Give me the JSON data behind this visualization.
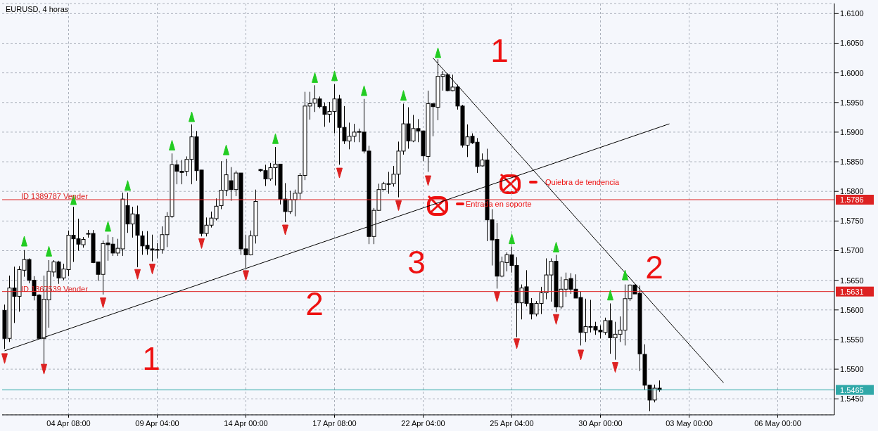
{
  "chart_data": {
    "type": "candlestick",
    "title": "EURUSD, 4 horas",
    "categories": [
      null,
      null,
      null,
      null,
      null,
      null,
      null,
      null,
      null,
      null,
      null,
      null,
      null,
      "04 Apr 08:00",
      null,
      null,
      null,
      null,
      null,
      null,
      null,
      null,
      null,
      null,
      null,
      null,
      null,
      null,
      null,
      null,
      null,
      "09 Apr 04:00",
      null,
      null,
      null,
      null,
      null,
      null,
      null,
      null,
      null,
      null,
      null,
      null,
      null,
      null,
      null,
      null,
      null,
      "14 Apr 00:00",
      null,
      null,
      null,
      null,
      null,
      null,
      null,
      null,
      null,
      null,
      null,
      null,
      null,
      null,
      null,
      null,
      null,
      "17 Apr 08:00",
      null,
      null,
      null,
      null,
      null,
      null,
      null,
      null,
      null,
      null,
      null,
      null,
      null,
      null,
      null,
      null,
      null,
      "22 Apr 04:00",
      null,
      null,
      null,
      null,
      null,
      null,
      null,
      null,
      null,
      null,
      null,
      null,
      null,
      null,
      null,
      null,
      null,
      "25 Apr 04:00",
      null,
      null,
      null,
      null,
      null,
      null,
      null,
      null,
      null,
      null,
      null,
      null,
      null,
      null,
      null,
      null,
      null,
      "30 Apr 00:00",
      null,
      null,
      null,
      null,
      null,
      null,
      null,
      null,
      null,
      null,
      null,
      null,
      null,
      null,
      null,
      null,
      null,
      "03 May 00:00",
      null,
      null,
      null,
      null,
      null,
      null,
      null,
      null,
      null,
      null,
      null,
      null,
      null,
      null,
      null,
      null,
      null,
      "06 May 00:00",
      null,
      null,
      null,
      null,
      null,
      null,
      null,
      null,
      null,
      null,
      null
    ],
    "ohlc": [
      [
        1.5599,
        1.5609,
        1.5534,
        1.5552
      ],
      [
        1.5552,
        1.5658,
        1.5546,
        1.5637
      ],
      [
        1.5637,
        1.5673,
        1.5578,
        1.5623
      ],
      [
        1.5623,
        1.5674,
        1.5597,
        1.5668
      ],
      [
        1.5667,
        1.5701,
        1.5656,
        1.5685
      ],
      [
        1.5685,
        1.5687,
        1.5645,
        1.565
      ],
      [
        1.565,
        1.5657,
        1.5616,
        1.5624
      ],
      [
        1.5625,
        1.5627,
        1.5551,
        1.5552
      ],
      [
        1.5552,
        1.5658,
        1.5508,
        1.5618
      ],
      [
        1.5617,
        1.5684,
        1.557,
        1.5665
      ],
      [
        1.5664,
        1.5684,
        1.5656,
        1.5681
      ],
      [
        1.5681,
        1.5683,
        1.5644,
        1.5654
      ],
      [
        1.5654,
        1.5678,
        1.565,
        1.5669
      ],
      [
        1.5668,
        1.5734,
        1.5657,
        1.5726
      ],
      [
        1.5726,
        1.5774,
        1.5681,
        1.572
      ],
      [
        1.572,
        1.5754,
        1.57,
        1.5711
      ],
      [
        1.571,
        1.5723,
        1.5705,
        1.5719
      ],
      [
        1.5729,
        1.5735,
        1.5722,
        1.5728
      ],
      [
        1.5729,
        1.5735,
        1.5679,
        1.568
      ],
      [
        1.5681,
        1.5681,
        1.5649,
        1.566
      ],
      [
        1.566,
        1.5717,
        1.5626,
        1.5712
      ],
      [
        1.5713,
        1.5727,
        1.5683,
        1.571
      ],
      [
        1.5711,
        1.5723,
        1.5691,
        1.5696
      ],
      [
        1.5696,
        1.572,
        1.5691,
        1.5704
      ],
      [
        1.5703,
        1.5798,
        1.5691,
        1.5787
      ],
      [
        1.5776,
        1.5798,
        1.573,
        1.5745
      ],
      [
        1.5745,
        1.5774,
        1.5722,
        1.5762
      ],
      [
        1.5761,
        1.5776,
        1.5672,
        1.5726
      ],
      [
        1.5725,
        1.5733,
        1.5693,
        1.5708
      ],
      [
        1.5709,
        1.5733,
        1.5693,
        1.5703
      ],
      [
        1.5703,
        1.5727,
        1.5682,
        1.5701
      ],
      [
        1.5702,
        1.5713,
        1.5687,
        1.5701
      ],
      [
        1.5702,
        1.5741,
        1.5695,
        1.5727
      ],
      [
        1.5727,
        1.5765,
        1.5706,
        1.5758
      ],
      [
        1.5758,
        1.5864,
        1.5755,
        1.5845
      ],
      [
        1.5845,
        1.5853,
        1.5812,
        1.5834
      ],
      [
        1.5834,
        1.5853,
        1.5812,
        1.5832
      ],
      [
        1.5834,
        1.5859,
        1.5826,
        1.5854
      ],
      [
        1.5854,
        1.5913,
        1.5812,
        1.5892
      ],
      [
        1.5892,
        1.5902,
        1.5818,
        1.5835
      ],
      [
        1.5836,
        1.5836,
        1.5724,
        1.5729
      ],
      [
        1.5729,
        1.5756,
        1.5724,
        1.5743
      ],
      [
        1.5743,
        1.5766,
        1.5739,
        1.5755
      ],
      [
        1.5754,
        1.5788,
        1.5751,
        1.5775
      ],
      [
        1.5776,
        1.5851,
        1.577,
        1.5802
      ],
      [
        1.5802,
        1.5855,
        1.5792,
        1.5828
      ],
      [
        1.5818,
        1.5841,
        1.5784,
        1.5803
      ],
      [
        1.5803,
        1.5835,
        1.5792,
        1.5831
      ],
      [
        1.5831,
        1.5831,
        1.5693,
        1.5703
      ],
      [
        1.5703,
        1.5727,
        1.5671,
        1.5693
      ],
      [
        1.5693,
        1.5734,
        1.5692,
        1.5725
      ],
      [
        1.5725,
        1.5803,
        1.5712,
        1.5783
      ],
      [
        1.5837,
        1.5838,
        1.5833,
        1.5835
      ],
      [
        1.5835,
        1.5845,
        1.5809,
        1.5821
      ],
      [
        1.5821,
        1.5848,
        1.5818,
        1.584
      ],
      [
        1.584,
        1.5875,
        1.581,
        1.5846
      ],
      [
        1.5846,
        1.5846,
        1.5778,
        1.5787
      ],
      [
        1.5787,
        1.5814,
        1.5748,
        1.5766
      ],
      [
        1.5766,
        1.5801,
        1.5762,
        1.5786
      ],
      [
        1.5786,
        1.5803,
        1.5758,
        1.5797
      ],
      [
        1.5797,
        1.5831,
        1.5786,
        1.5827
      ],
      [
        1.5827,
        1.5968,
        1.5819,
        1.5944
      ],
      [
        1.5944,
        1.5968,
        1.5921,
        1.5948
      ],
      [
        1.5949,
        1.5979,
        1.5934,
        1.5956
      ],
      [
        1.5956,
        1.596,
        1.594,
        1.5943
      ],
      [
        1.5943,
        1.595,
        1.5909,
        1.593
      ],
      [
        1.593,
        1.5951,
        1.5916,
        1.5935
      ],
      [
        1.5935,
        1.5981,
        1.5898,
        1.5956
      ],
      [
        1.5956,
        1.5963,
        1.5845,
        1.5908
      ],
      [
        1.5908,
        1.5944,
        1.588,
        1.5885
      ],
      [
        1.5885,
        1.5916,
        1.5871,
        1.5893
      ],
      [
        1.5893,
        1.5914,
        1.5883,
        1.59
      ],
      [
        1.5901,
        1.5906,
        1.5883,
        1.59
      ],
      [
        1.59,
        1.5956,
        1.5864,
        1.5868
      ],
      [
        1.5868,
        1.5877,
        1.5711,
        1.5724
      ],
      [
        1.5724,
        1.5772,
        1.5711,
        1.5768
      ],
      [
        1.5768,
        1.5813,
        1.5767,
        1.5803
      ],
      [
        1.5803,
        1.5816,
        1.5802,
        1.5813
      ],
      [
        1.5813,
        1.5833,
        1.5796,
        1.5812
      ],
      [
        1.5813,
        1.5843,
        1.5808,
        1.5829
      ],
      [
        1.5829,
        1.5884,
        1.579,
        1.5868
      ],
      [
        1.5868,
        1.5948,
        1.5862,
        1.5914
      ],
      [
        1.5914,
        1.5942,
        1.5872,
        1.5885
      ],
      [
        1.5885,
        1.5929,
        1.5883,
        1.5906
      ],
      [
        1.5906,
        1.5922,
        1.5883,
        1.5902
      ],
      [
        1.5902,
        1.5902,
        1.5851,
        1.586
      ],
      [
        1.5859,
        1.597,
        1.5833,
        1.5948
      ],
      [
        1.5948,
        1.5948,
        1.5893,
        1.5943
      ],
      [
        1.5942,
        1.6023,
        1.592,
        1.5994
      ],
      [
        1.5994,
        1.6003,
        1.597,
        1.5997
      ],
      [
        1.5997,
        1.5999,
        1.5969,
        1.597
      ],
      [
        1.597,
        1.5997,
        1.5969,
        1.5976
      ],
      [
        1.5976,
        1.598,
        1.5938,
        1.5944
      ],
      [
        1.5944,
        1.5946,
        1.5874,
        1.5878
      ],
      [
        1.5878,
        1.5913,
        1.5858,
        1.5892
      ],
      [
        1.5893,
        1.5898,
        1.588,
        1.5882
      ],
      [
        1.5883,
        1.589,
        1.5831,
        1.5842
      ],
      [
        1.5843,
        1.5864,
        1.5842,
        1.5853
      ],
      [
        1.5853,
        1.5872,
        1.5716,
        1.5752
      ],
      [
        1.5752,
        1.577,
        1.5675,
        1.5718
      ],
      [
        1.5719,
        1.5747,
        1.5636,
        1.5657
      ],
      [
        1.5657,
        1.569,
        1.5655,
        1.5681
      ],
      [
        1.568,
        1.5697,
        1.5665,
        1.5693
      ],
      [
        1.5693,
        1.5707,
        1.5663,
        1.5675
      ],
      [
        1.5675,
        1.5689,
        1.5554,
        1.5612
      ],
      [
        1.5612,
        1.5643,
        1.5584,
        1.5637
      ],
      [
        1.5639,
        1.5667,
        1.5606,
        1.5611
      ],
      [
        1.5611,
        1.562,
        1.5584,
        1.5593
      ],
      [
        1.5593,
        1.5615,
        1.5589,
        1.5611
      ],
      [
        1.5611,
        1.5639,
        1.5593,
        1.5629
      ],
      [
        1.5629,
        1.5687,
        1.5618,
        1.5659
      ],
      [
        1.5659,
        1.5687,
        1.5614,
        1.5682
      ],
      [
        1.5682,
        1.5693,
        1.5596,
        1.5605
      ],
      [
        1.5605,
        1.5656,
        1.5602,
        1.5635
      ],
      [
        1.5635,
        1.5663,
        1.5622,
        1.5651
      ],
      [
        1.5653,
        1.5662,
        1.5627,
        1.5635
      ],
      [
        1.5635,
        1.566,
        1.562,
        1.562
      ],
      [
        1.5621,
        1.5631,
        1.554,
        1.5562
      ],
      [
        1.5562,
        1.5619,
        1.5546,
        1.5572
      ],
      [
        1.5572,
        1.5617,
        1.5562,
        1.5571
      ],
      [
        1.5572,
        1.558,
        1.5558,
        1.5566
      ],
      [
        1.5566,
        1.5574,
        1.5552,
        1.5563
      ],
      [
        1.5562,
        1.5587,
        1.5558,
        1.5582
      ],
      [
        1.5582,
        1.5611,
        1.5526,
        1.5553
      ],
      [
        1.5553,
        1.558,
        1.5516,
        1.5559
      ],
      [
        1.5559,
        1.5589,
        1.5546,
        1.5566
      ],
      [
        1.5566,
        1.5643,
        1.554,
        1.5619
      ],
      [
        1.5619,
        1.5643,
        1.5615,
        1.5642
      ],
      [
        1.5642,
        1.5643,
        1.5627,
        1.5627
      ],
      [
        1.5628,
        1.5641,
        1.5497,
        1.5526
      ],
      [
        1.5525,
        1.5542,
        1.5465,
        1.5473
      ],
      [
        1.5473,
        1.5473,
        1.5429,
        1.5448
      ],
      [
        1.5448,
        1.5474,
        1.5444,
        1.5468
      ],
      [
        1.5468,
        1.5481,
        1.5462,
        1.5465
      ],
      null,
      null,
      null,
      null,
      null,
      null,
      null,
      null,
      null,
      null,
      null,
      null,
      null,
      null,
      null,
      null,
      null,
      null,
      null,
      null,
      null,
      null,
      null,
      null,
      null,
      null,
      null,
      null,
      null,
      null,
      null,
      null,
      null,
      null,
      null
    ],
    "series": [
      {
        "type": "line",
        "color": "#000000",
        "values": [
          1.5531,
          null,
          null,
          null,
          null,
          null,
          null,
          null,
          null,
          null,
          null,
          null,
          null,
          null,
          null,
          null,
          null,
          null,
          null,
          null,
          null,
          null,
          null,
          null,
          null,
          null,
          null,
          null,
          null,
          null,
          null,
          null,
          null,
          null,
          null,
          null,
          null,
          null,
          null,
          null,
          null,
          null,
          null,
          null,
          null,
          null,
          null,
          null,
          null,
          null,
          null,
          null,
          null,
          null,
          null,
          null,
          null,
          null,
          null,
          null,
          null,
          null,
          null,
          null,
          null,
          null,
          null,
          null,
          null,
          null,
          null,
          null,
          null,
          null,
          null,
          null,
          null,
          null,
          null,
          null,
          null,
          null,
          null,
          null,
          null,
          null,
          null,
          null,
          null,
          null,
          null,
          null,
          null,
          null,
          null,
          null,
          null,
          null,
          null,
          null,
          null,
          null,
          null,
          null,
          null,
          null,
          null,
          null,
          null,
          null,
          null,
          null,
          null,
          null,
          null,
          null,
          null,
          null,
          null,
          null,
          null,
          null,
          null,
          null,
          null,
          null,
          null,
          null,
          null,
          null,
          null,
          null,
          null,
          null,
          null,
          1.5914,
          null,
          null,
          null,
          null,
          null,
          null,
          null,
          null,
          null,
          null,
          null,
          null,
          null,
          null,
          null,
          null,
          null,
          null,
          null,
          null,
          null,
          null,
          null,
          null,
          null,
          null,
          null,
          null,
          null,
          null,
          null,
          null,
          null
        ]
      },
      {
        "type": "line",
        "color": "#000000",
        "values": [
          null,
          null,
          null,
          null,
          null,
          null,
          null,
          null,
          null,
          null,
          null,
          null,
          null,
          null,
          null,
          null,
          null,
          null,
          null,
          null,
          null,
          null,
          null,
          null,
          null,
          null,
          null,
          null,
          null,
          null,
          null,
          null,
          null,
          null,
          null,
          null,
          null,
          null,
          null,
          null,
          null,
          null,
          null,
          null,
          null,
          null,
          null,
          null,
          null,
          null,
          null,
          null,
          null,
          null,
          null,
          null,
          null,
          null,
          null,
          null,
          null,
          null,
          null,
          null,
          null,
          null,
          null,
          null,
          null,
          null,
          null,
          null,
          null,
          null,
          null,
          null,
          null,
          null,
          null,
          null,
          null,
          null,
          null,
          null,
          null,
          null,
          null,
          1.6025,
          null,
          null,
          null,
          null,
          null,
          null,
          null,
          null,
          null,
          null,
          null,
          null,
          null,
          null,
          null,
          null,
          null,
          null,
          null,
          null,
          null,
          null,
          null,
          null,
          null,
          null,
          null,
          null,
          null,
          null,
          null,
          null,
          null,
          null,
          null,
          null,
          null,
          null,
          null,
          null,
          null,
          null,
          null,
          null,
          null,
          null,
          null,
          null,
          null,
          null,
          null,
          null,
          null,
          null,
          null,
          null,
          null,
          null,
          1.5477,
          null,
          null,
          null,
          null,
          null,
          null,
          null,
          null,
          null,
          null,
          null,
          null,
          null,
          null,
          null,
          null,
          null,
          null,
          null,
          null,
          null,
          null
        ]
      },
      {
        "type": "scatter",
        "color": "#22cc22",
        "marker": "triangle",
        "values": [
          null,
          null,
          null,
          null,
          1.5716,
          null,
          null,
          null,
          null,
          1.5699,
          null,
          null,
          null,
          null,
          1.5786,
          null,
          null,
          null,
          null,
          null,
          null,
          1.5741,
          null,
          null,
          null,
          1.581,
          null,
          null,
          null,
          null,
          null,
          null,
          null,
          null,
          1.5878,
          null,
          null,
          null,
          1.5926,
          null,
          null,
          null,
          null,
          null,
          null,
          1.587,
          null,
          null,
          null,
          null,
          null,
          null,
          null,
          null,
          null,
          1.5889,
          null,
          null,
          null,
          null,
          null,
          null,
          null,
          1.5992,
          null,
          null,
          null,
          1.5995,
          null,
          null,
          null,
          null,
          null,
          1.597,
          null,
          null,
          null,
          null,
          null,
          null,
          null,
          1.5962,
          null,
          null,
          null,
          null,
          null,
          null,
          1.6034,
          null,
          null,
          null,
          null,
          null,
          null,
          null,
          null,
          null,
          null,
          null,
          null,
          null,
          null,
          1.572,
          null,
          null,
          null,
          null,
          null,
          null,
          null,
          null,
          1.5706,
          null,
          null,
          null,
          null,
          null,
          null,
          null,
          null,
          null,
          null,
          1.5625,
          null,
          null,
          1.5659,
          null,
          null,
          null,
          null,
          null,
          null,
          null,
          null,
          null,
          null,
          null,
          null,
          null,
          null,
          null,
          null,
          null,
          null,
          null,
          null,
          null,
          null,
          null,
          null,
          null,
          null,
          null,
          null,
          null,
          null,
          null,
          null,
          null,
          null,
          null,
          null,
          null,
          null,
          null,
          null,
          null,
          null
        ]
      },
      {
        "type": "scatter",
        "color": "#dd2222",
        "marker": "triangle",
        "values": [
          1.5518,
          null,
          null,
          null,
          null,
          null,
          null,
          null,
          1.55,
          null,
          null,
          null,
          null,
          null,
          null,
          null,
          null,
          null,
          null,
          null,
          1.5612,
          null,
          null,
          null,
          null,
          null,
          null,
          1.566,
          null,
          null,
          1.5669,
          null,
          null,
          null,
          null,
          null,
          null,
          null,
          null,
          null,
          1.5712,
          null,
          null,
          null,
          null,
          null,
          null,
          null,
          null,
          1.5658,
          null,
          null,
          null,
          null,
          null,
          null,
          null,
          1.5735,
          null,
          null,
          null,
          null,
          null,
          null,
          null,
          null,
          null,
          null,
          1.5831,
          null,
          null,
          null,
          null,
          null,
          null,
          null,
          null,
          null,
          null,
          null,
          1.5776,
          null,
          null,
          null,
          null,
          null,
          1.5818,
          null,
          null,
          null,
          null,
          null,
          null,
          null,
          null,
          null,
          null,
          null,
          null,
          null,
          1.5622,
          null,
          null,
          null,
          1.5543,
          null,
          null,
          null,
          null,
          null,
          null,
          null,
          1.5584,
          null,
          null,
          null,
          null,
          1.5524,
          null,
          null,
          null,
          null,
          null,
          null,
          1.5503,
          null,
          null,
          null,
          null,
          null,
          null,
          null,
          null,
          null,
          null,
          null,
          null,
          null,
          null,
          null,
          null,
          null,
          null,
          null,
          null,
          null,
          null,
          null,
          null,
          null,
          null,
          null,
          null,
          null,
          null,
          null,
          null,
          null,
          null,
          null,
          null,
          null,
          null,
          null,
          null,
          null,
          null,
          null,
          null
        ]
      }
    ],
    "ylim": [
      1.5423,
      1.6117
    ],
    "yticks": [
      {
        "value": 1.545,
        "label": "1.5450"
      },
      {
        "value": 1.55,
        "label": "1.5500"
      },
      {
        "value": 1.555,
        "label": "1.5550"
      },
      {
        "value": 1.56,
        "label": "1.5600"
      },
      {
        "value": 1.565,
        "label": "1.5650"
      },
      {
        "value": 1.57,
        "label": "1.5700"
      },
      {
        "value": 1.575,
        "label": "1.5750"
      },
      {
        "value": 1.58,
        "label": "1.5800"
      },
      {
        "value": 1.585,
        "label": "1.5850"
      },
      {
        "value": 1.59,
        "label": "1.5900"
      },
      {
        "value": 1.595,
        "label": "1.5950"
      },
      {
        "value": 1.6,
        "label": "1.6000"
      },
      {
        "value": 1.605,
        "label": "1.6050"
      },
      {
        "value": 1.61,
        "label": "1.6100"
      }
    ],
    "grid": true,
    "ref_lines": [
      {
        "axis": "y",
        "value": 1.5786,
        "label": "1.5786",
        "color": "#dd2222"
      },
      {
        "axis": "y",
        "value": 1.5631,
        "label": "1.5631",
        "color": "#dd2222"
      },
      {
        "axis": "y",
        "value": 1.5465,
        "label": "1.5465",
        "color": "#30a8a8"
      }
    ],
    "annotations": [
      "ID 1389787 Vender",
      "ID 1367539 Vender",
      "1",
      "2",
      "3",
      "2",
      "1",
      "Quiebra de tendencia",
      "Entrada en soporte"
    ]
  }
}
